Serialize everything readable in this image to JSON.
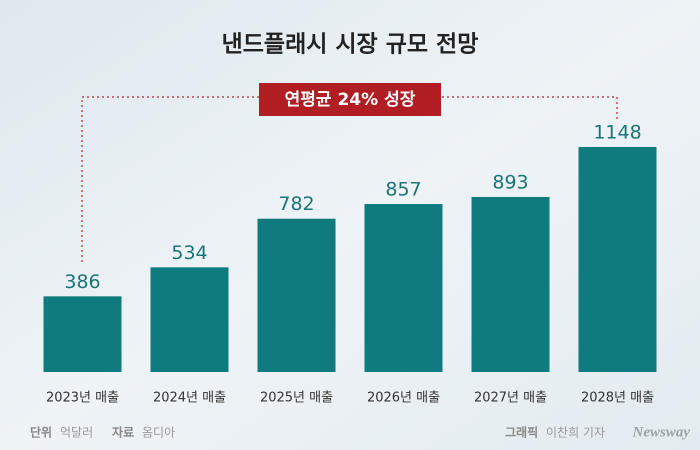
{
  "chart_data": {
    "type": "bar",
    "title": "낸드플래시 시장 규모 전망",
    "annotation": "연평균 24% 성장",
    "categories": [
      "2023년 매출",
      "2024년 매출",
      "2025년 매출",
      "2026년 매출",
      "2027년 매출",
      "2028년 매출"
    ],
    "values": [
      386,
      534,
      782,
      857,
      893,
      1148
    ],
    "color": "#0f7b7f",
    "unit_label": "단위",
    "unit": "억달러",
    "source_label": "자료",
    "source": "옴디아",
    "credit_label": "그래픽",
    "credit": "이찬희 기자",
    "logo": "Newsway"
  }
}
